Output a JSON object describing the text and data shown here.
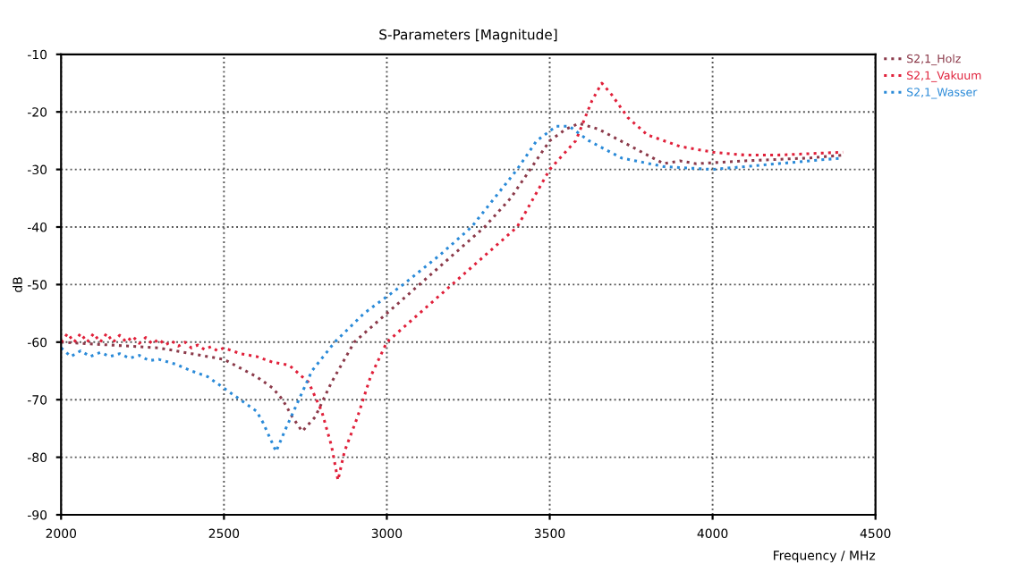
{
  "chart_data": {
    "type": "line",
    "title": "S-Parameters [Magnitude]",
    "xlabel": "Frequency / MHz",
    "ylabel": "dB",
    "xlim": [
      2000,
      4500
    ],
    "xticks": [
      2000,
      2500,
      3000,
      3500,
      4000,
      4500
    ],
    "ylim": [
      -90,
      -10
    ],
    "yticks": [
      -90,
      -80,
      -70,
      -60,
      -50,
      -40,
      -30,
      -20,
      -10
    ],
    "grid": true,
    "legend": "top right",
    "line_style": "dotted",
    "marker": "none",
    "series": [
      {
        "name": "S2,1_Holz",
        "color": "#8b3a4a",
        "x": [
          2000,
          2150,
          2300,
          2400,
          2500,
          2600,
          2650,
          2680,
          2710,
          2740,
          2780,
          2830,
          2900,
          3000,
          3100,
          3200,
          3300,
          3380,
          3440,
          3500,
          3550,
          3590,
          3650,
          3750,
          3850,
          3900,
          3950,
          4100,
          4300,
          4400
        ],
        "values": [
          -60,
          -60.5,
          -61,
          -62,
          -63,
          -66,
          -68,
          -70,
          -73,
          -75.5,
          -73,
          -67,
          -60,
          -55,
          -50,
          -45,
          -40,
          -35,
          -30,
          -25,
          -23,
          -22,
          -23,
          -26,
          -29,
          -28.5,
          -29,
          -28.5,
          -28,
          -27.5
        ]
      },
      {
        "name": "S2,1_Vakuum",
        "color": "#e0203a",
        "x": [
          2000,
          2020,
          2040,
          2060,
          2080,
          2100,
          2120,
          2140,
          2160,
          2180,
          2200,
          2220,
          2240,
          2260,
          2280,
          2300,
          2320,
          2340,
          2360,
          2380,
          2400,
          2420,
          2440,
          2460,
          2480,
          2500,
          2550,
          2600,
          2650,
          2700,
          2760,
          2800,
          2830,
          2850,
          2870,
          2910,
          2950,
          3000,
          3100,
          3200,
          3300,
          3400,
          3450,
          3500,
          3580,
          3630,
          3660,
          3690,
          3740,
          3800,
          3900,
          4000,
          4100,
          4200,
          4400
        ],
        "values": [
          -60,
          -58.5,
          -60,
          -58.5,
          -60,
          -58.5,
          -60,
          -58.5,
          -60,
          -58.8,
          -60,
          -59,
          -60.2,
          -59.2,
          -60.3,
          -59.5,
          -60.5,
          -59.8,
          -60.7,
          -60,
          -61,
          -60.5,
          -61.3,
          -60.8,
          -61.5,
          -61,
          -62,
          -62.5,
          -63.5,
          -64,
          -67,
          -72,
          -78,
          -84,
          -79,
          -73,
          -66,
          -60,
          -55,
          -50,
          -45,
          -40,
          -35,
          -30,
          -25,
          -18,
          -15,
          -17,
          -21,
          -24,
          -26,
          -27,
          -27.5,
          -27.5,
          -27
        ]
      },
      {
        "name": "S2,1_Wasser",
        "color": "#2a8ad8",
        "x": [
          2000,
          2030,
          2060,
          2090,
          2120,
          2150,
          2180,
          2210,
          2240,
          2270,
          2300,
          2350,
          2400,
          2450,
          2500,
          2550,
          2600,
          2620,
          2660,
          2690,
          2730,
          2770,
          2840,
          2930,
          3050,
          3160,
          3260,
          3330,
          3400,
          3460,
          3520,
          3560,
          3620,
          3720,
          3850,
          4000,
          4200,
          4400
        ],
        "values": [
          -61,
          -62.5,
          -61.5,
          -62.5,
          -61.8,
          -62.5,
          -62,
          -62.8,
          -62.3,
          -63.2,
          -63,
          -63.8,
          -65,
          -66,
          -68,
          -70,
          -72,
          -74,
          -79,
          -75,
          -70,
          -65,
          -60,
          -55,
          -50,
          -45,
          -40,
          -35,
          -30,
          -25,
          -22.5,
          -22.5,
          -25,
          -28,
          -29.5,
          -30,
          -29,
          -28
        ]
      }
    ]
  }
}
